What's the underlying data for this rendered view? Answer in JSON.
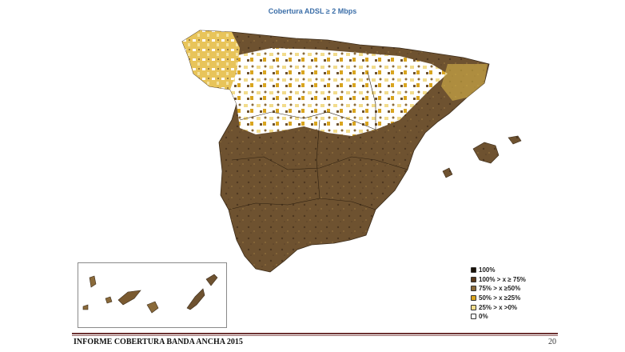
{
  "map": {
    "title": "Cobertura ADSL ≥  2 Mbps"
  },
  "legend": {
    "items": [
      {
        "label": "100%",
        "color": "#1a1208"
      },
      {
        "label": "100% > x ≥ 75%",
        "color": "#5a3a1c"
      },
      {
        "label": "75% > x ≥50%",
        "color": "#8a6a3a"
      },
      {
        "label": "50% > x ≥25%",
        "color": "#d9a520"
      },
      {
        "label": "25% > x >0%",
        "color": "#f2dc8c"
      },
      {
        "label": "0%",
        "color": "#ffffff"
      }
    ]
  },
  "footer": {
    "title": "INFORME COBERTURA BANDA ANCHA 2015",
    "page": "20"
  }
}
